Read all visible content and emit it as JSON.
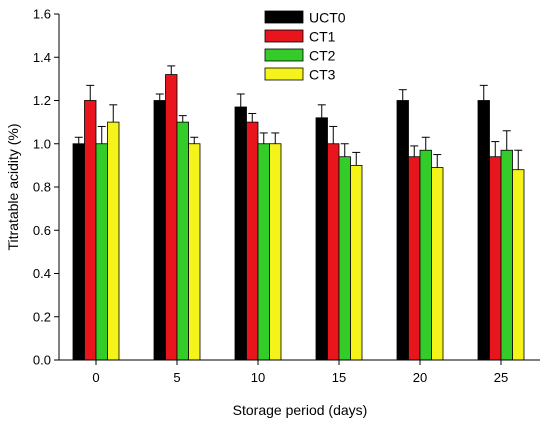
{
  "chart_data": {
    "type": "bar",
    "xlabel": "Storage period (days)",
    "ylabel": "Titratable acidity (%)",
    "categories": [
      "0",
      "5",
      "10",
      "15",
      "20",
      "25"
    ],
    "ylim": [
      0,
      1.6
    ],
    "yticks": [
      "0.0",
      "0.2",
      "0.4",
      "0.6",
      "0.8",
      "1.0",
      "1.2",
      "1.4",
      "1.6"
    ],
    "legend_position": "top-center",
    "grid": false,
    "series": [
      {
        "name": "UCT0",
        "color": "#000000",
        "values": [
          1.0,
          1.2,
          1.17,
          1.12,
          1.2,
          1.2
        ],
        "errors": [
          0.03,
          0.03,
          0.06,
          0.06,
          0.05,
          0.07
        ]
      },
      {
        "name": "CT1",
        "color": "#e8161c",
        "values": [
          1.2,
          1.32,
          1.1,
          1.0,
          0.94,
          0.94
        ],
        "errors": [
          0.07,
          0.04,
          0.04,
          0.08,
          0.05,
          0.07
        ]
      },
      {
        "name": "CT2",
        "color": "#34cc29",
        "values": [
          1.0,
          1.1,
          1.0,
          0.94,
          0.97,
          0.97
        ],
        "errors": [
          0.08,
          0.03,
          0.05,
          0.06,
          0.06,
          0.09
        ]
      },
      {
        "name": "CT3",
        "color": "#f4f41a",
        "values": [
          1.1,
          1.0,
          1.0,
          0.9,
          0.89,
          0.88
        ],
        "errors": [
          0.08,
          0.03,
          0.05,
          0.06,
          0.06,
          0.09
        ]
      }
    ]
  }
}
